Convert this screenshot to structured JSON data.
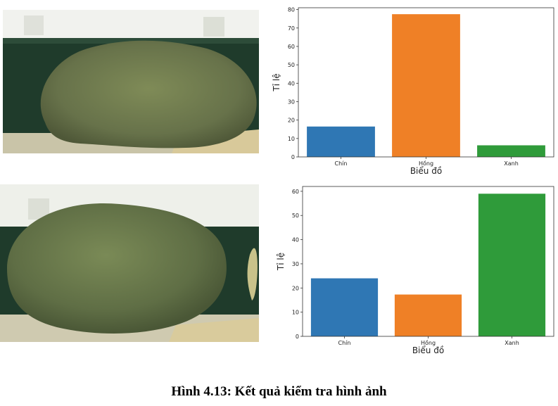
{
  "caption": "Hình 4.13: Kết quả kiểm tra hình ảnh",
  "colors": {
    "chin": "#2f77b4",
    "hong": "#ef8026",
    "xanh": "#2f9b3a"
  },
  "chart_data": [
    {
      "type": "bar",
      "categories": [
        "Chín",
        "Hồng",
        "Xanh"
      ],
      "values": [
        16.5,
        77.5,
        6.3
      ],
      "xlabel": "Biểu đồ",
      "ylabel": "Tỉ lệ",
      "ylim": [
        0,
        81
      ],
      "yticks": [
        0,
        10,
        20,
        30,
        40,
        50,
        60,
        70,
        80
      ],
      "grid": false
    },
    {
      "type": "bar",
      "categories": [
        "Chín",
        "Hồng",
        "Xanh"
      ],
      "values": [
        24,
        17.3,
        59
      ],
      "xlabel": "Biểu đồ",
      "ylabel": "Tỉ lệ",
      "ylim": [
        0,
        62
      ],
      "yticks": [
        0,
        10,
        20,
        30,
        40,
        50,
        60
      ],
      "grid": false
    }
  ]
}
